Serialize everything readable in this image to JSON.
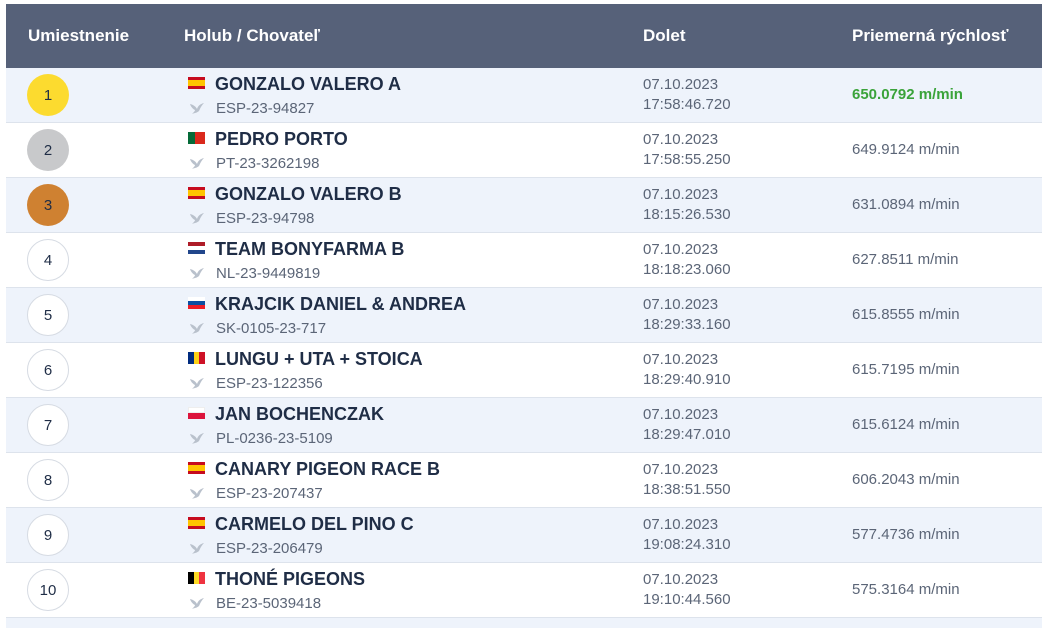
{
  "header": {
    "rank": "Umiestnenie",
    "pigeon_breeder": "Holub / Chovateľ",
    "arrival": "Dolet",
    "avg_speed": "Priemerná rýchlosť"
  },
  "colors": {
    "header_bg": "#566179",
    "best_speed": "#3aa33a",
    "gold": "#fcdb2f",
    "silver": "#c8c9cb",
    "bronze": "#cf8131"
  },
  "rows": [
    {
      "rank": "1",
      "medal": "gold",
      "flag": "es",
      "name": "GONZALO VALERO A",
      "ring": "ESP-23-94827",
      "date": "07.10.2023",
      "time": "17:58:46.720",
      "speed": "650.0792 m/min",
      "best": true
    },
    {
      "rank": "2",
      "medal": "silver",
      "flag": "pt",
      "name": "PEDRO PORTO",
      "ring": "PT-23-3262198",
      "date": "07.10.2023",
      "time": "17:58:55.250",
      "speed": "649.9124 m/min"
    },
    {
      "rank": "3",
      "medal": "bronze",
      "flag": "es",
      "name": "GONZALO VALERO B",
      "ring": "ESP-23-94798",
      "date": "07.10.2023",
      "time": "18:15:26.530",
      "speed": "631.0894 m/min"
    },
    {
      "rank": "4",
      "flag": "nl",
      "name": "TEAM BONYFARMA B",
      "ring": "NL-23-9449819",
      "date": "07.10.2023",
      "time": "18:18:23.060",
      "speed": "627.8511 m/min"
    },
    {
      "rank": "5",
      "flag": "sk",
      "name": "KRAJCIK DANIEL & ANDREA",
      "ring": "SK-0105-23-717",
      "date": "07.10.2023",
      "time": "18:29:33.160",
      "speed": "615.8555 m/min"
    },
    {
      "rank": "6",
      "flag": "ro",
      "name": "LUNGU + UTA + STOICA",
      "ring": "ESP-23-122356",
      "date": "07.10.2023",
      "time": "18:29:40.910",
      "speed": "615.7195 m/min"
    },
    {
      "rank": "7",
      "flag": "pl",
      "name": "JAN BOCHENCZAK",
      "ring": "PL-0236-23-5109",
      "date": "07.10.2023",
      "time": "18:29:47.010",
      "speed": "615.6124 m/min"
    },
    {
      "rank": "8",
      "flag": "es",
      "name": "CANARY PIGEON RACE B",
      "ring": "ESP-23-207437",
      "date": "07.10.2023",
      "time": "18:38:51.550",
      "speed": "606.2043 m/min"
    },
    {
      "rank": "9",
      "flag": "es",
      "name": "CARMELO DEL PINO C",
      "ring": "ESP-23-206479",
      "date": "07.10.2023",
      "time": "19:08:24.310",
      "speed": "577.4736 m/min"
    },
    {
      "rank": "10",
      "flag": "be",
      "name": "THONÉ PIGEONS",
      "ring": "BE-23-5039418",
      "date": "07.10.2023",
      "time": "19:10:44.560",
      "speed": "575.3164 m/min"
    }
  ]
}
